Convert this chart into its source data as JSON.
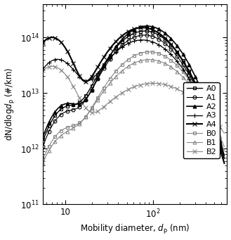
{
  "title": "",
  "xlabel": "Mobility diameter, $d_\\mathrm{p}$ (nm)",
  "ylabel": "dN/dlog$d_\\mathrm{p}$ (#/km)",
  "xlim": [
    5.5,
    700
  ],
  "ylim": [
    100000000000.0,
    400000000000000.0
  ],
  "series_order": [
    "A4",
    "A2",
    "A0",
    "A1",
    "A3",
    "B1",
    "B0",
    "B2"
  ],
  "series": {
    "A0": {
      "color": "#000000",
      "marker": "s",
      "markersize": 3.5,
      "lw": 1.0,
      "ls": "-",
      "open": true
    },
    "A1": {
      "color": "#000000",
      "marker": "o",
      "markersize": 3.5,
      "lw": 0.8,
      "ls": "-",
      "open": true
    },
    "A2": {
      "color": "#000000",
      "marker": "^",
      "markersize": 3.5,
      "lw": 1.2,
      "ls": "-",
      "open": false
    },
    "A3": {
      "color": "#000000",
      "marker": "+",
      "markersize": 5,
      "lw": 0.9,
      "ls": "-",
      "open": false
    },
    "A4": {
      "color": "#000000",
      "marker": "x",
      "markersize": 4,
      "lw": 1.5,
      "ls": "-",
      "open": false
    },
    "B0": {
      "color": "#888888",
      "marker": "s",
      "markersize": 3.5,
      "lw": 0.8,
      "ls": "-",
      "open": true
    },
    "B1": {
      "color": "#888888",
      "marker": "^",
      "markersize": 3.5,
      "lw": 0.8,
      "ls": "-",
      "open": true
    },
    "B2": {
      "color": "#888888",
      "marker": "x",
      "markersize": 4,
      "lw": 0.8,
      "ls": "-",
      "open": false
    }
  },
  "legend_labels": [
    "A0",
    "A1",
    "A2",
    "A3",
    "A4",
    "B0",
    "B1",
    "B2"
  ]
}
